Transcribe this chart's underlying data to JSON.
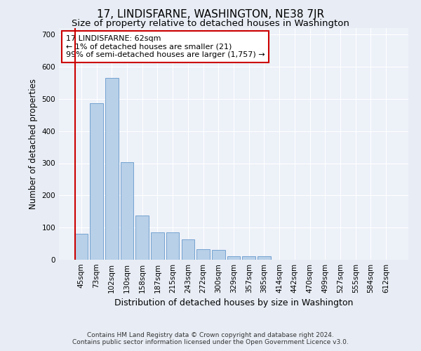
{
  "title": "17, LINDISFARNE, WASHINGTON, NE38 7JR",
  "subtitle": "Size of property relative to detached houses in Washington",
  "xlabel": "Distribution of detached houses by size in Washington",
  "ylabel": "Number of detached properties",
  "footer_line1": "Contains HM Land Registry data © Crown copyright and database right 2024.",
  "footer_line2": "Contains public sector information licensed under the Open Government Licence v3.0.",
  "annotation_line1": "17 LINDISFARNE: 62sqm",
  "annotation_line2": "← 1% of detached houses are smaller (21)",
  "annotation_line3": "99% of semi-detached houses are larger (1,757) →",
  "bar_labels": [
    "45sqm",
    "73sqm",
    "102sqm",
    "130sqm",
    "158sqm",
    "187sqm",
    "215sqm",
    "243sqm",
    "272sqm",
    "300sqm",
    "329sqm",
    "357sqm",
    "385sqm",
    "414sqm",
    "442sqm",
    "470sqm",
    "499sqm",
    "527sqm",
    "555sqm",
    "584sqm",
    "612sqm"
  ],
  "bar_values": [
    80,
    487,
    565,
    303,
    138,
    86,
    85,
    63,
    33,
    30,
    12,
    10,
    10,
    0,
    0,
    0,
    0,
    0,
    0,
    0,
    0
  ],
  "bar_color": "#b8d0e8",
  "bar_edge_color": "#6699cc",
  "highlight_color": "#cc0000",
  "annotation_box_color": "#cc0000",
  "ylim": [
    0,
    720
  ],
  "yticks": [
    0,
    100,
    200,
    300,
    400,
    500,
    600,
    700
  ],
  "bg_color": "#e8edf5",
  "plot_bg_color": "#edf1f8",
  "grid_color": "#ffffff",
  "title_fontsize": 11,
  "subtitle_fontsize": 9.5,
  "annotation_fontsize": 8,
  "tick_fontsize": 7.5,
  "ylabel_fontsize": 8.5,
  "xlabel_fontsize": 9
}
